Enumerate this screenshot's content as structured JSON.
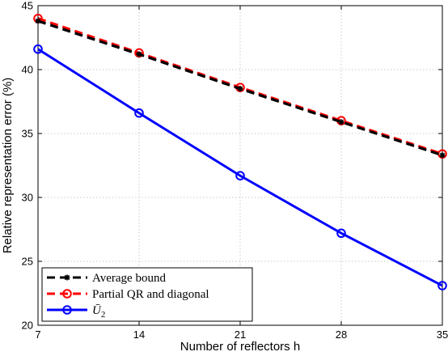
{
  "chart_data": {
    "type": "line",
    "xlabel": "Number of reflectors h",
    "ylabel": "Relative representation error (%)",
    "xlim": [
      7,
      35
    ],
    "ylim": [
      20,
      45
    ],
    "xticks": [
      7,
      14,
      21,
      28,
      35
    ],
    "yticks": [
      20,
      25,
      30,
      35,
      40,
      45
    ],
    "grid": true,
    "legend_position": "bottom-left",
    "x": [
      7,
      14,
      21,
      28,
      35
    ],
    "series": [
      {
        "name": "Average bound",
        "values": [
          43.8,
          41.2,
          38.5,
          35.9,
          33.3
        ],
        "color": "#000000",
        "style": "dashed",
        "marker": "star"
      },
      {
        "name": "Partial QR and diagonal",
        "values": [
          44.0,
          41.3,
          38.6,
          36.0,
          33.4
        ],
        "color": "#ff0000",
        "style": "dashed",
        "marker": "circle"
      },
      {
        "name": "Ū",
        "name_subscript": "2",
        "values": [
          41.6,
          36.6,
          31.7,
          27.2,
          23.1
        ],
        "color": "#0000ff",
        "style": "solid",
        "marker": "circle"
      }
    ]
  }
}
